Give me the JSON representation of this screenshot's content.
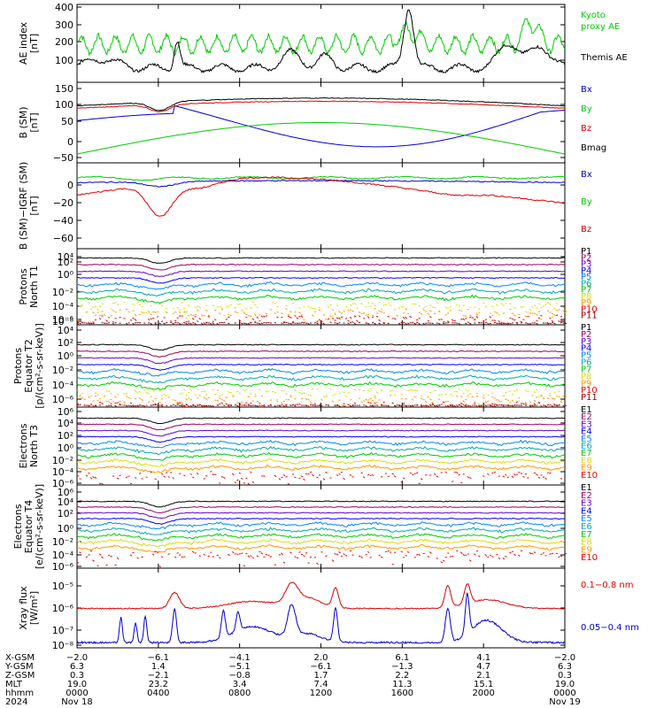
{
  "colors": {
    "black": "#000000",
    "green": "#00cc00",
    "red": "#dd0000",
    "blue": "#0000cc",
    "ladder": [
      "#000000",
      "#990066",
      "#6600cc",
      "#0000ff",
      "#0088ff",
      "#00aaaa",
      "#00cc00",
      "#dddd00",
      "#ff9900",
      "#ee0000",
      "#990000"
    ]
  },
  "chart_data": [
    {
      "type": "line",
      "ylabel": [
        "AE index",
        "[nT]"
      ],
      "ylim": [
        0,
        400
      ],
      "ticks": [
        "400",
        "300",
        "200",
        "100"
      ],
      "series": [
        {
          "name": "Kyoto proxy AE",
          "color": "green"
        },
        {
          "name": "Themis AE",
          "color": "black"
        }
      ]
    },
    {
      "type": "line",
      "ylabel": [
        "B (SM)",
        "[nT]"
      ],
      "ylim": [
        -60,
        150
      ],
      "ticks": [
        "150",
        "100",
        "50",
        "0",
        "−50"
      ],
      "series": [
        {
          "name": "Bx",
          "color": "blue"
        },
        {
          "name": "By",
          "color": "green"
        },
        {
          "name": "Bz",
          "color": "red"
        },
        {
          "name": "Bmag",
          "color": "black"
        }
      ]
    },
    {
      "type": "line",
      "ylabel": [
        "B (SM)−IGRF (SM)",
        "[nT]"
      ],
      "ylim": [
        -65,
        15
      ],
      "ticks": [
        "0",
        "−20",
        "−40",
        "−60"
      ],
      "series": [
        {
          "name": "Bx",
          "color": "blue"
        },
        {
          "name": "By",
          "color": "green"
        },
        {
          "name": "Bz",
          "color": "red"
        }
      ]
    },
    {
      "type": "line",
      "log": true,
      "ylabel": [
        "Protons",
        "North T1"
      ],
      "ticks": [
        "10⁴",
        "10²",
        "10⁰",
        "10⁻²",
        "10⁻⁴",
        "10⁻⁶",
        "10⁻⁸"
      ],
      "series": [
        "P1",
        "P2",
        "P3",
        "P4",
        "P5",
        "P6",
        "P7",
        "P8",
        "P9",
        "P10",
        "P11"
      ]
    },
    {
      "type": "line",
      "log": true,
      "ylabel": [
        "Protons",
        "Equator T2",
        "[p/(cm²-s-sr-keV)]"
      ],
      "ticks": [
        "10⁴",
        "10²",
        "10⁰",
        "10⁻²",
        "10⁻⁴",
        "10⁻⁶"
      ],
      "series": [
        "P1",
        "P2",
        "P3",
        "P4",
        "P5",
        "P6",
        "P7",
        "P8",
        "P9",
        "P10",
        "P11"
      ]
    },
    {
      "type": "line",
      "log": true,
      "ylabel": [
        "Electrons",
        "North T3"
      ],
      "ticks": [
        "10⁶",
        "10⁴",
        "10²",
        "10⁰",
        "10⁻²",
        "10⁻⁴",
        "10⁻⁶"
      ],
      "series": [
        "E1",
        "E2",
        "E3",
        "E4",
        "E5",
        "E6",
        "E7",
        "E8",
        "E9",
        "E10"
      ]
    },
    {
      "type": "line",
      "log": true,
      "ylabel": [
        "Electrons",
        "Equator T4",
        "[e/(cm²-s-sr-keV)]"
      ],
      "ticks": [
        "10⁶",
        "10⁴",
        "10²",
        "10⁰",
        "10⁻²",
        "10⁻⁴",
        "10⁻⁶"
      ],
      "series": [
        "E1",
        "E2",
        "E3",
        "E4",
        "E5",
        "E6",
        "E7",
        "E8",
        "E9",
        "E10"
      ]
    },
    {
      "type": "line",
      "log": true,
      "ylabel": [
        "Xray flux",
        "[W/m²]"
      ],
      "ticks": [
        "10⁻⁵",
        "10⁻⁶",
        "10⁻⁷",
        "10⁻⁸"
      ],
      "series": [
        {
          "name": "0.1−0.8 nm",
          "color": "red"
        },
        {
          "name": "0.05−0.4 nm",
          "color": "blue"
        }
      ]
    }
  ],
  "ephemeris": {
    "labels": [
      "X-GSM",
      "Y-GSM",
      "Z-GSM",
      "MLT",
      "hhmm",
      "2024"
    ],
    "columns": [
      [
        "−2.0",
        "6.3",
        "0.3",
        "19.0",
        "0000",
        "Nov 18"
      ],
      [
        "−6.1",
        "1.4",
        "−2.1",
        "23.2",
        "0400",
        ""
      ],
      [
        "−4.1",
        "−5.1",
        "−0.8",
        "3.4",
        "0800",
        ""
      ],
      [
        "2.0",
        "−6.1",
        "1.7",
        "7.4",
        "1200",
        ""
      ],
      [
        "6.1",
        "−1.3",
        "2.2",
        "11.3",
        "1600",
        ""
      ],
      [
        "4.1",
        "4.7",
        "2.1",
        "15.1",
        "2000",
        ""
      ],
      [
        "−2.0",
        "6.3",
        "0.3",
        "19.0",
        "0000",
        "Nov 19"
      ]
    ]
  }
}
